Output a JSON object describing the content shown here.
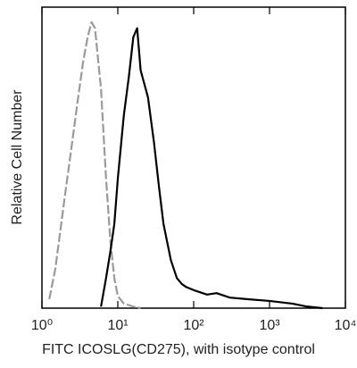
{
  "chart_data": {
    "type": "line",
    "xlabel": "FITC ICOSLG(CD275),  with isotype control",
    "ylabel": "Relative Cell Number",
    "xscale": "log",
    "xlim": [
      1,
      10000
    ],
    "xticks": [
      {
        "value": 1,
        "label": "10⁰"
      },
      {
        "value": 10,
        "label": "10¹"
      },
      {
        "value": 100,
        "label": "10²"
      },
      {
        "value": 1000,
        "label": "10³"
      },
      {
        "value": 10000,
        "label": "10⁴"
      }
    ],
    "ylim": [
      0,
      100
    ],
    "x": [
      1,
      1.25,
      1.5,
      2,
      2.5,
      3,
      3.5,
      4,
      4.5,
      5,
      6,
      7,
      8,
      9,
      10,
      12,
      14,
      16,
      18,
      20,
      25,
      30,
      35,
      40,
      50,
      60,
      70,
      80,
      100,
      150,
      200,
      300,
      500,
      1000,
      2000,
      3000,
      5000,
      10000
    ],
    "series": [
      {
        "color": "#9a9a9a",
        "dashed": true,
        "values": [
          null,
          3,
          13,
          37,
          55,
          70,
          82,
          90,
          95,
          93,
          73,
          43,
          22,
          10,
          4,
          1.5,
          1,
          0.5,
          0.3,
          0,
          null,
          null,
          null,
          null,
          null,
          null,
          null,
          null,
          null,
          null,
          null,
          null,
          null,
          null,
          null,
          null,
          null,
          null
        ]
      },
      {
        "color": "#000000",
        "dashed": false,
        "values": [
          null,
          null,
          null,
          null,
          null,
          null,
          null,
          null,
          null,
          null,
          0.5,
          10,
          19,
          28,
          43,
          64,
          77,
          90,
          93,
          79,
          70,
          55,
          40,
          28,
          16,
          10,
          8,
          7,
          6,
          4.5,
          5,
          3.5,
          3,
          2.4,
          1.5,
          0.6,
          0,
          null
        ]
      }
    ]
  }
}
